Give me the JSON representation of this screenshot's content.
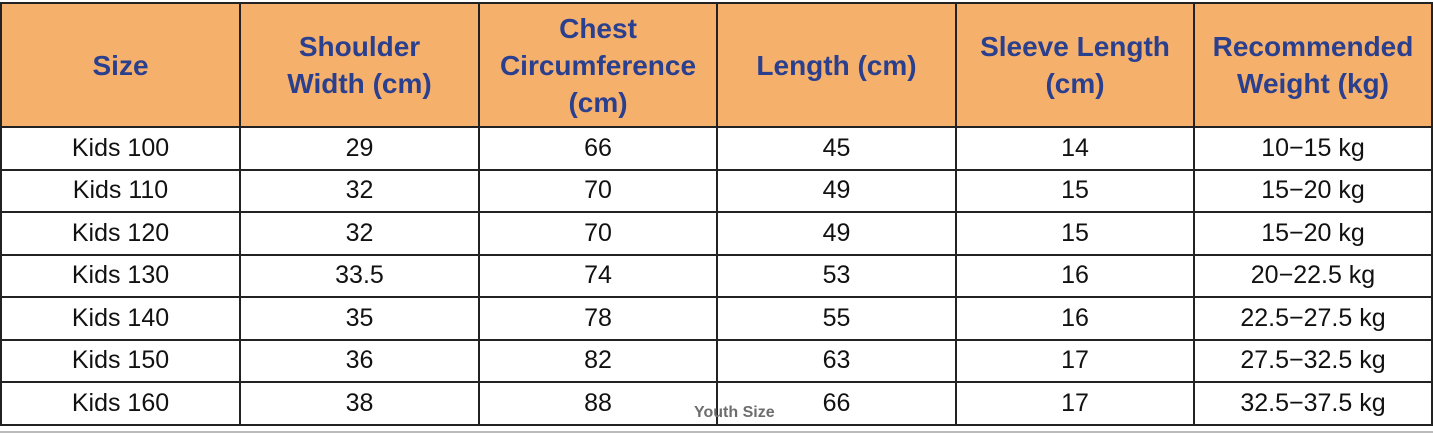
{
  "table": {
    "header": [
      [
        "Size"
      ],
      [
        "Shoulder",
        "Width (cm)"
      ],
      [
        "Chest",
        "Circumference",
        "(cm)"
      ],
      [
        "Length (cm)"
      ],
      [
        "Sleeve Length",
        "(cm)"
      ],
      [
        "Recommended",
        "Weight (kg)"
      ]
    ],
    "rows": [
      [
        "Kids 100",
        "29",
        "66",
        "45",
        "14",
        "10−15 kg"
      ],
      [
        "Kids 110",
        "32",
        "70",
        "49",
        "15",
        "15−20 kg"
      ],
      [
        "Kids 120",
        "32",
        "70",
        "49",
        "15",
        "15−20 kg"
      ],
      [
        "Kids 130",
        "33.5",
        "74",
        "53",
        "16",
        "20−22.5 kg"
      ],
      [
        "Kids 140",
        "35",
        "78",
        "55",
        "16",
        "22.5−27.5 kg"
      ],
      [
        "Kids 150",
        "36",
        "82",
        "63",
        "17",
        "27.5−32.5 kg"
      ],
      [
        "Kids 160",
        "38",
        "88",
        "66",
        "17",
        "32.5−37.5 kg"
      ]
    ]
  },
  "watermark": "Youth Size"
}
